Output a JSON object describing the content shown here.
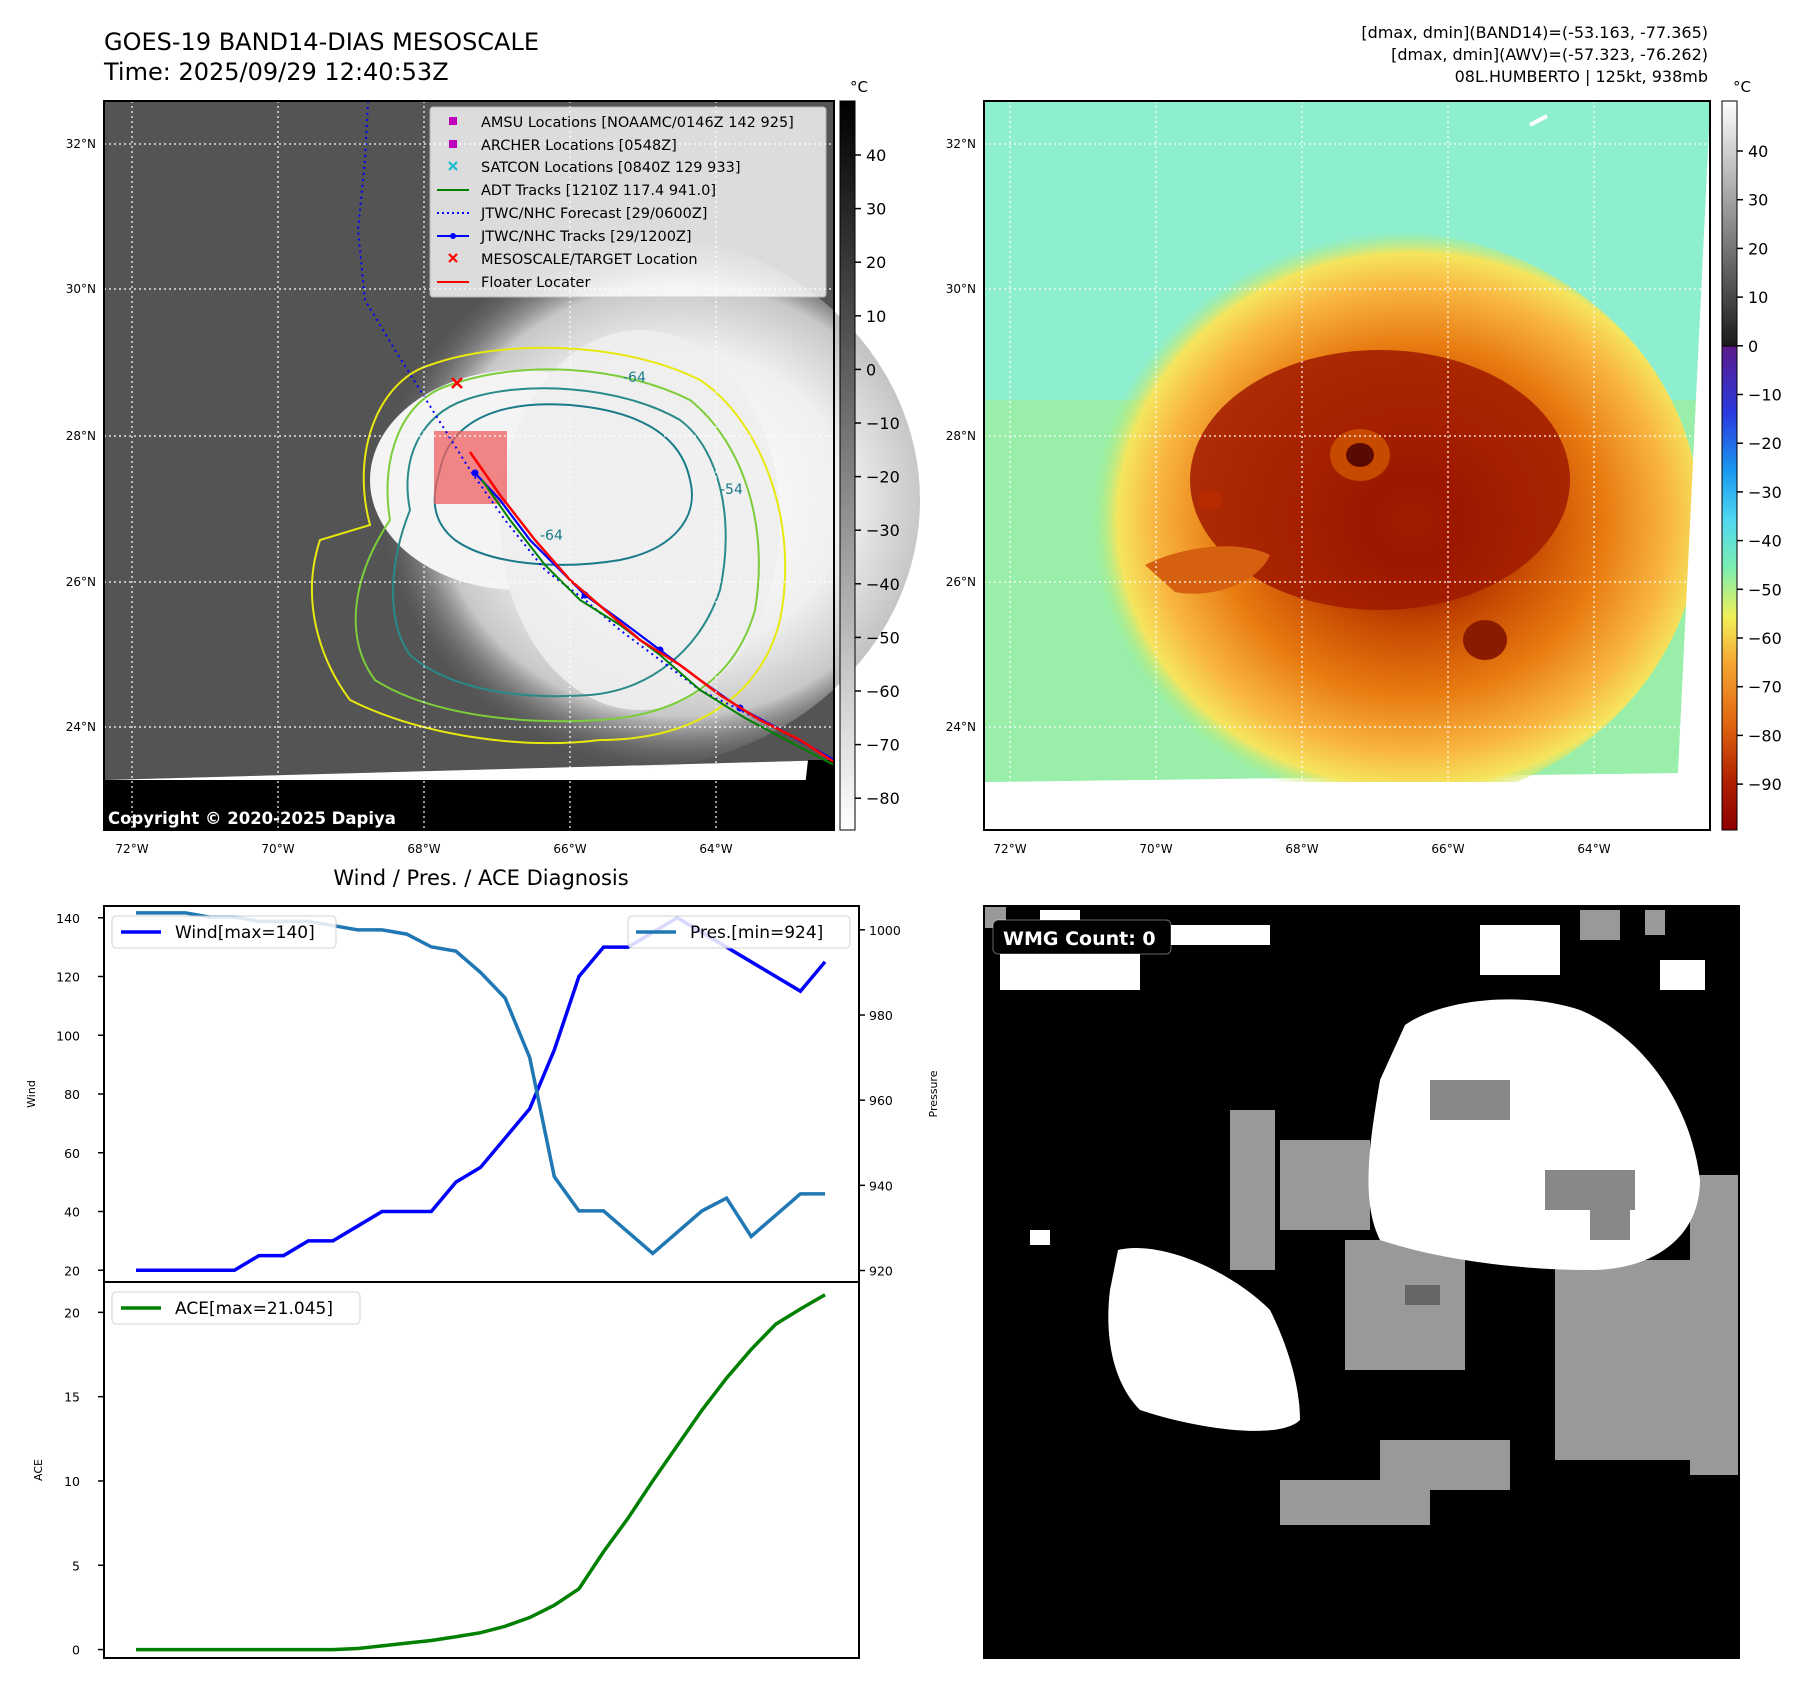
{
  "header": {
    "title_line1": "GOES-19 BAND14-DIAS MESOSCALE",
    "title_line2": "Time: 2025/09/29 12:40:53Z",
    "right_line1": "[dmax, dmin](BAND14)=(-53.163, -77.365)",
    "right_line2": "[dmax, dmin](AWV)=(-57.323, -76.262)",
    "right_line3": "08L.HUMBERTO | 125kt, 938mb"
  },
  "colors": {
    "wind": "#0000ff",
    "pressure": "#1f77b4",
    "ace": "#008000",
    "floater": "#ff0000",
    "adt": "#008000",
    "amsu": "#bf00bf",
    "satcon": "#17becf"
  },
  "map": {
    "lon_ticks": [
      "72°W",
      "70°W",
      "68°W",
      "66°W",
      "64°W"
    ],
    "lat_ticks": [
      "32°N",
      "30°N",
      "28°N",
      "26°N",
      "24°N"
    ],
    "contour_labels": [
      "-64",
      "-54",
      "-64"
    ],
    "copyright": "Copyright © 2020-2025 Dapiya",
    "legend": [
      {
        "label": "AMSU Locations [NOAAMC/0146Z 142 925]",
        "icon": "square-marker"
      },
      {
        "label": "ARCHER Locations [0548Z]",
        "icon": "square-marker"
      },
      {
        "label": "SATCON Locations [0840Z 129 933]",
        "icon": "x-marker"
      },
      {
        "label": "ADT Tracks [1210Z 117.4 941.0]",
        "icon": "line"
      },
      {
        "label": "JTWC/NHC Forecast [29/0600Z]",
        "icon": "dotted-line"
      },
      {
        "label": "JTWC/NHC Tracks [29/1200Z]",
        "icon": "line-dot"
      },
      {
        "label": "MESOSCALE/TARGET Location",
        "icon": "x-marker"
      },
      {
        "label": "Floater Locater",
        "icon": "line"
      }
    ]
  },
  "colorbar_gray": {
    "unit": "°C",
    "ticks": [
      "40",
      "30",
      "20",
      "10",
      "0",
      "−10",
      "−20",
      "−30",
      "−40",
      "−50",
      "−60",
      "−70",
      "−80"
    ]
  },
  "colorbar_color": {
    "unit": "°C",
    "ticks": [
      "40",
      "30",
      "20",
      "10",
      "0",
      "−10",
      "−20",
      "−30",
      "−40",
      "−50",
      "−60",
      "−70",
      "−80",
      "−90"
    ]
  },
  "wmg": {
    "label": "WMG Count: 0"
  },
  "chart_data": [
    {
      "type": "line",
      "title": "Wind / Pres. / ACE Diagnosis",
      "ylabel": "Wind",
      "y2label": "Pressure",
      "ylim": [
        16,
        144
      ],
      "y2lim": [
        917.3,
        1005.6
      ],
      "yticks": [
        "140",
        "120",
        "100",
        "80",
        "60",
        "40",
        "20"
      ],
      "y2ticks": [
        "1000",
        "980",
        "960",
        "940",
        "920"
      ],
      "x": [
        0,
        1,
        2,
        3,
        4,
        5,
        6,
        7,
        8,
        9,
        10,
        11,
        12,
        13,
        14,
        15,
        16,
        17,
        18,
        19,
        20,
        21,
        22,
        23,
        24,
        25,
        26,
        27,
        28
      ],
      "series": [
        {
          "name": "Wind[max=140]",
          "values": [
            20,
            20,
            20,
            20,
            20,
            25,
            25,
            30,
            30,
            35,
            40,
            40,
            40,
            50,
            55,
            65,
            75,
            95,
            120,
            130,
            130,
            135,
            140,
            135,
            130,
            125,
            120,
            115,
            125
          ]
        },
        {
          "name": "Pres.[min=924]",
          "values": [
            1004,
            1004,
            1004,
            1003,
            1003,
            1002,
            1002,
            1002,
            1001,
            1000,
            1000,
            999,
            996,
            995,
            990,
            984,
            970,
            942,
            934,
            934,
            929,
            924,
            929,
            934,
            937,
            928,
            933,
            938,
            938
          ]
        }
      ]
    },
    {
      "type": "line",
      "ylabel": "ACE",
      "ylim": [
        -0.5,
        21.8
      ],
      "yticks": [
        "20",
        "15",
        "10",
        "5",
        "0"
      ],
      "x": [
        0,
        1,
        2,
        3,
        4,
        5,
        6,
        7,
        8,
        9,
        10,
        11,
        12,
        13,
        14,
        15,
        16,
        17,
        18,
        19,
        20,
        21,
        22,
        23,
        24,
        25,
        26,
        27,
        28
      ],
      "series": [
        {
          "name": "ACE[max=21.045]",
          "values": [
            0,
            0,
            0,
            0,
            0,
            0,
            0,
            0,
            0,
            0.06,
            0.22,
            0.38,
            0.54,
            0.76,
            1.0,
            1.38,
            1.9,
            2.63,
            3.6,
            5.8,
            7.8,
            10.0,
            12.1,
            14.2,
            16.1,
            17.8,
            19.3,
            20.2,
            21.045
          ]
        }
      ]
    }
  ]
}
